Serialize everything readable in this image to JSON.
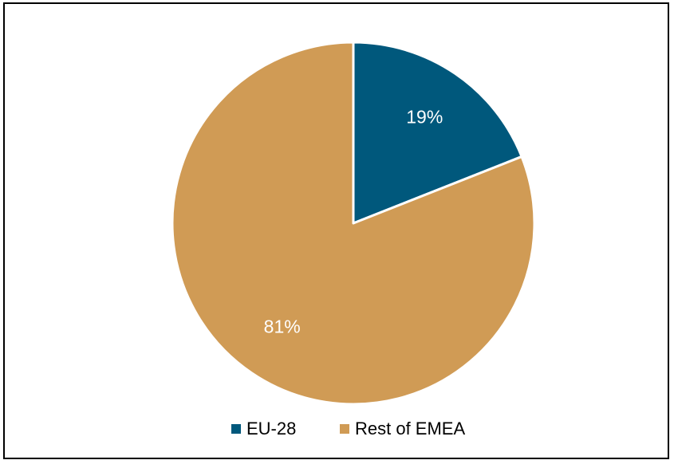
{
  "chart_data": {
    "type": "pie",
    "title": "",
    "start_angle_deg": 0,
    "direction": "clockwise",
    "legend_position": "bottom",
    "slices": [
      {
        "name": "EU-28",
        "value": 19,
        "label": "19%",
        "color": "#00587C"
      },
      {
        "name": "Rest of EMEA",
        "value": 81,
        "label": "81%",
        "color": "#D09B55"
      }
    ]
  }
}
